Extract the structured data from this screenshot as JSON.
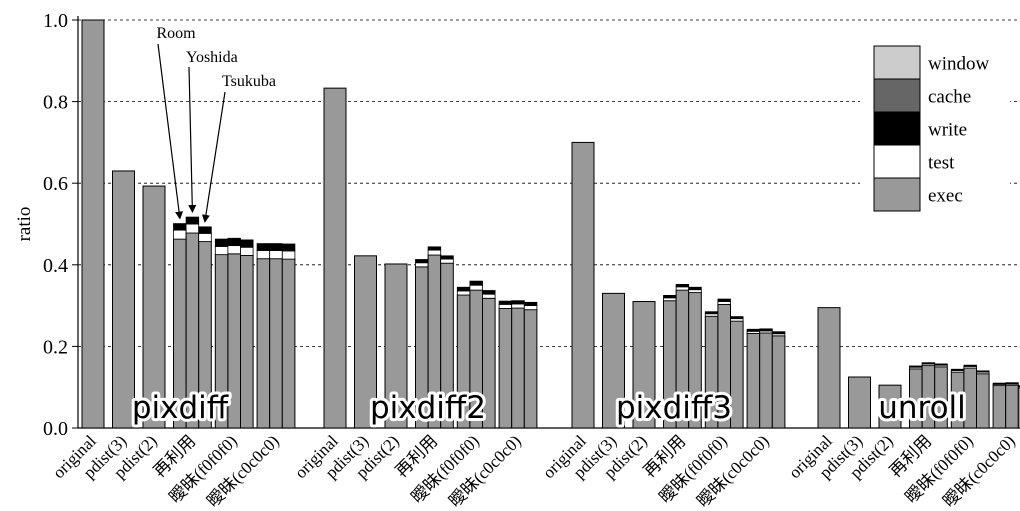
{
  "chart_data": {
    "type": "bar",
    "stacked": true,
    "ylabel": "ratio",
    "ylim": [
      0,
      1.0
    ],
    "yticks": [
      "0.0",
      "0.2",
      "0.4",
      "0.6",
      "0.8",
      "1.0"
    ],
    "grid": "horizontal dashed",
    "legend_position": "top-right",
    "legend": [
      {
        "name": "window",
        "color": "#cccccc"
      },
      {
        "name": "cache",
        "color": "#666666"
      },
      {
        "name": "write",
        "color": "#000000"
      },
      {
        "name": "test",
        "color": "#ffffff"
      },
      {
        "name": "exec",
        "color": "#999999"
      }
    ],
    "x_labels": [
      "original",
      "pdist(3)",
      "pdist(2)",
      "再利用",
      "曖昧(f0f0f0)",
      "曖昧(c0c0c0)"
    ],
    "annotations": [
      "Room",
      "Yoshida",
      "Tsukuba"
    ],
    "groups": [
      {
        "name": "pixdiff",
        "bars": [
          [
            {
              "v": 1.0
            }
          ],
          [
            {
              "v": 0.63
            }
          ],
          [
            {
              "v": 0.593
            }
          ],
          [
            [
              0.463,
              0.022,
              0.016
            ],
            [
              0.478,
              0.022,
              0.017
            ],
            [
              0.457,
              0.02,
              0.016
            ]
          ],
          [
            [
              0.425,
              0.02,
              0.018
            ],
            [
              0.427,
              0.02,
              0.018
            ],
            [
              0.423,
              0.02,
              0.018
            ]
          ],
          [
            [
              0.415,
              0.02,
              0.017
            ],
            [
              0.415,
              0.02,
              0.017
            ],
            [
              0.414,
              0.02,
              0.017
            ]
          ]
        ]
      },
      {
        "name": "pixdiff2",
        "bars": [
          [
            {
              "v": 0.833
            }
          ],
          [
            {
              "v": 0.422
            }
          ],
          [
            {
              "v": 0.402
            }
          ],
          [
            [
              0.395,
              0.01,
              0.008
            ],
            [
              0.424,
              0.012,
              0.008
            ],
            [
              0.404,
              0.01,
              0.008
            ]
          ],
          [
            [
              0.326,
              0.01,
              0.009
            ],
            [
              0.338,
              0.012,
              0.01
            ],
            [
              0.318,
              0.01,
              0.009
            ]
          ],
          [
            [
              0.293,
              0.01,
              0.008
            ],
            [
              0.294,
              0.01,
              0.008
            ],
            [
              0.29,
              0.01,
              0.008
            ]
          ]
        ]
      },
      {
        "name": "pixdiff3",
        "bars": [
          [
            {
              "v": 0.7
            }
          ],
          [
            {
              "v": 0.33
            }
          ],
          [
            {
              "v": 0.31
            }
          ],
          [
            [
              0.312,
              0.007,
              0.006
            ],
            [
              0.338,
              0.008,
              0.006
            ],
            [
              0.332,
              0.007,
              0.006
            ]
          ],
          [
            [
              0.274,
              0.006,
              0.005
            ],
            [
              0.303,
              0.007,
              0.006
            ],
            [
              0.262,
              0.006,
              0.005
            ]
          ],
          [
            [
              0.232,
              0.005,
              0.005
            ],
            [
              0.233,
              0.005,
              0.005
            ],
            [
              0.226,
              0.005,
              0.005
            ]
          ]
        ]
      },
      {
        "name": "unroll",
        "bars": [
          [
            {
              "v": 0.295
            }
          ],
          [
            {
              "v": 0.125
            }
          ],
          [
            {
              "v": 0.105
            }
          ],
          [
            [
              0.145,
              0.004,
              0.003
            ],
            [
              0.153,
              0.004,
              0.003
            ],
            [
              0.15,
              0.004,
              0.003
            ]
          ],
          [
            [
              0.137,
              0.004,
              0.003
            ],
            [
              0.147,
              0.004,
              0.003
            ],
            [
              0.133,
              0.004,
              0.003
            ]
          ],
          [
            [
              0.104,
              0.003,
              0.003
            ],
            [
              0.105,
              0.003,
              0.003
            ],
            [
              0.098,
              0.003,
              0.003
            ]
          ]
        ]
      }
    ]
  }
}
